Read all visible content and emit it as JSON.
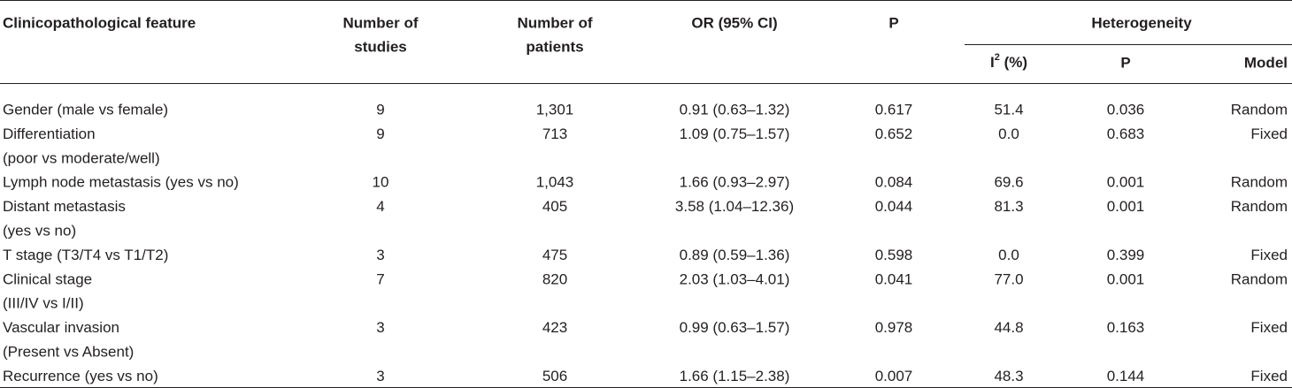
{
  "table": {
    "header": {
      "feature": "Clinicopathological feature",
      "studies": [
        "Number of",
        "studies"
      ],
      "patients": [
        "Number of",
        "patients"
      ],
      "or": "OR (95% CI)",
      "p": "P",
      "heterogeneity": "Heterogeneity",
      "i2": {
        "base": "I",
        "sup": "2",
        "rest": " (%)"
      },
      "het_p": "P",
      "model": "Model"
    },
    "rows": [
      {
        "feature": [
          "Gender (male vs female)"
        ],
        "studies": "9",
        "patients": "1,301",
        "or": "0.91 (0.63–1.32)",
        "p": "0.617",
        "i2": "51.4",
        "het_p": "0.036",
        "model": "Random"
      },
      {
        "feature": [
          "Differentiation",
          "(poor vs moderate/well)"
        ],
        "studies": "9",
        "patients": "713",
        "or": "1.09 (0.75–1.57)",
        "p": "0.652",
        "i2": "0.0",
        "het_p": "0.683",
        "model": "Fixed"
      },
      {
        "feature": [
          "Lymph node metastasis (yes vs no)"
        ],
        "studies": "10",
        "patients": "1,043",
        "or": "1.66 (0.93–2.97)",
        "p": "0.084",
        "i2": "69.6",
        "het_p": "0.001",
        "model": "Random"
      },
      {
        "feature": [
          "Distant metastasis",
          "(yes vs no)"
        ],
        "studies": "4",
        "patients": "405",
        "or": "3.58 (1.04–12.36)",
        "p": "0.044",
        "i2": "81.3",
        "het_p": "0.001",
        "model": "Random"
      },
      {
        "feature": [
          "T stage (T3/T4 vs T1/T2)"
        ],
        "studies": "3",
        "patients": "475",
        "or": "0.89 (0.59–1.36)",
        "p": "0.598",
        "i2": "0.0",
        "het_p": "0.399",
        "model": "Fixed"
      },
      {
        "feature": [
          "Clinical stage",
          "(III/IV vs I/II)"
        ],
        "studies": "7",
        "patients": "820",
        "or": "2.03 (1.03–4.01)",
        "p": "0.041",
        "i2": "77.0",
        "het_p": "0.001",
        "model": "Random"
      },
      {
        "feature": [
          "Vascular invasion",
          "(Present vs Absent)"
        ],
        "studies": "3",
        "patients": "423",
        "or": "0.99 (0.63–1.57)",
        "p": "0.978",
        "i2": "44.8",
        "het_p": "0.163",
        "model": "Fixed"
      },
      {
        "feature": [
          "Recurrence (yes vs no)"
        ],
        "studies": "3",
        "patients": "506",
        "or": "1.66 (1.15–2.38)",
        "p": "0.007",
        "i2": "48.3",
        "het_p": "0.144",
        "model": "Fixed"
      }
    ]
  }
}
